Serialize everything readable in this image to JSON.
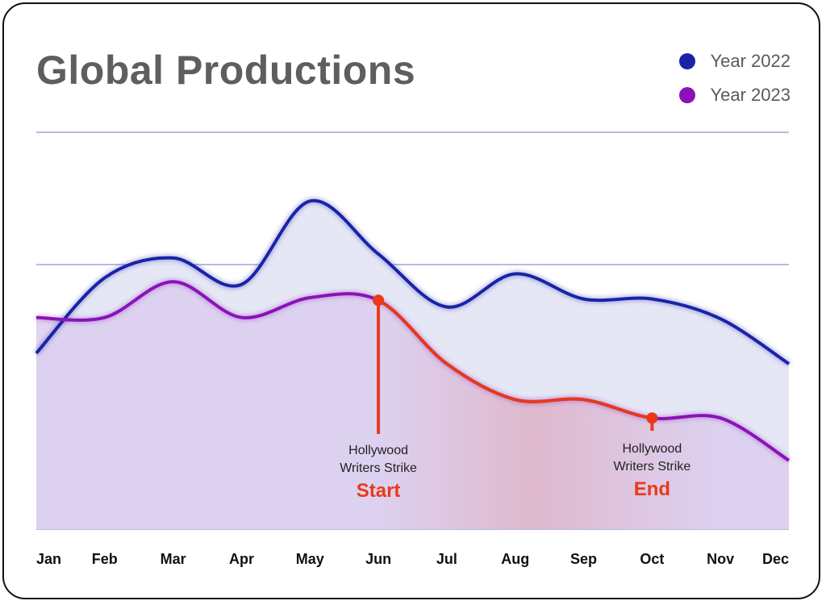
{
  "chart_data": {
    "type": "area",
    "title": "Global Productions",
    "xlabel": "",
    "ylabel": "",
    "ylim": [
      0,
      3
    ],
    "grid": true,
    "legend_position": "top-right",
    "categories": [
      "Jan",
      "Feb",
      "Mar",
      "Apr",
      "May",
      "Jun",
      "Jul",
      "Aug",
      "Sep",
      "Oct",
      "Nov",
      "Dec"
    ],
    "series": [
      {
        "name": "Year 2022",
        "color": "#1a23a8",
        "fill": "#e4e6f4",
        "values": [
          1.33,
          1.9,
          2.05,
          1.85,
          2.48,
          2.08,
          1.68,
          1.93,
          1.74,
          1.74,
          1.59,
          1.25
        ]
      },
      {
        "name": "Year 2023",
        "color": "#8a12b8",
        "fill": "#dcccee",
        "values": [
          1.6,
          1.6,
          1.87,
          1.6,
          1.75,
          1.73,
          1.25,
          0.98,
          0.98,
          0.84,
          0.84,
          0.52
        ]
      }
    ],
    "highlight": {
      "color": "#e8391a",
      "from_category": "Jun",
      "to_category": "Oct",
      "series": "Year 2023"
    },
    "annotations": [
      {
        "category": "Jun",
        "line1": "Hollywood",
        "line2": "Writers Strike",
        "label": "Start"
      },
      {
        "category": "Oct",
        "line1": "Hollywood",
        "line2": "Writers Strike",
        "label": "End"
      }
    ]
  }
}
